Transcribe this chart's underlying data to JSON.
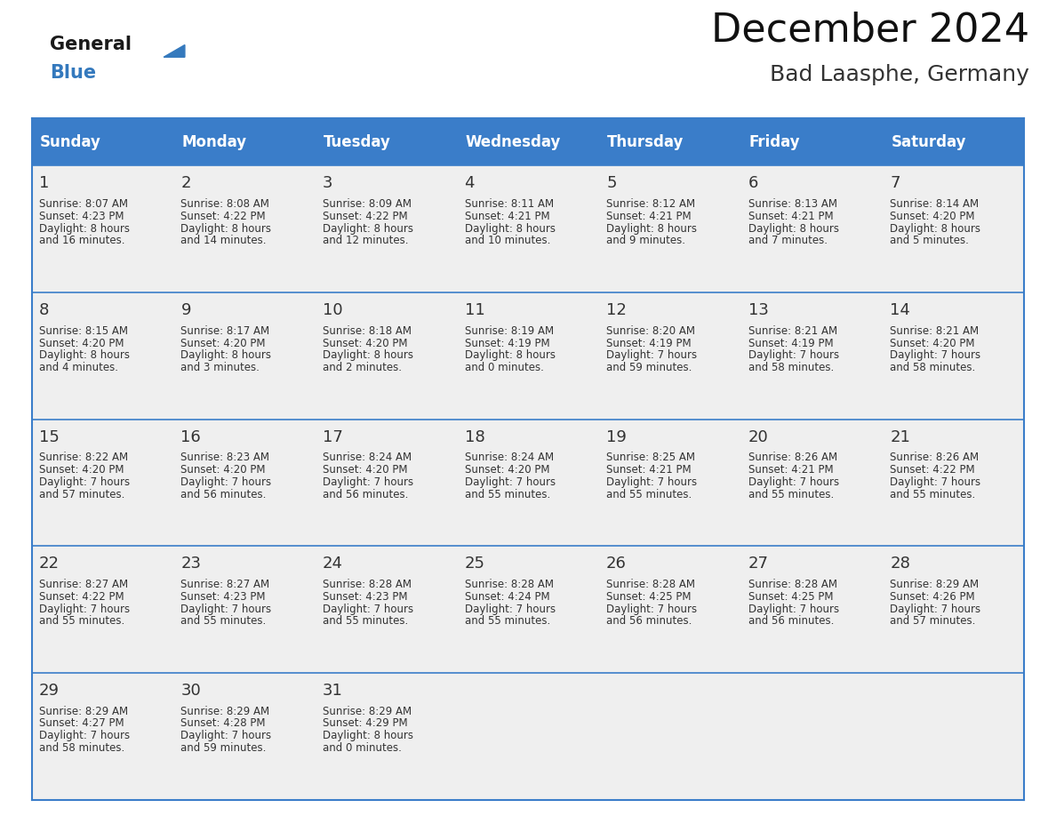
{
  "title": "December 2024",
  "subtitle": "Bad Laasphe, Germany",
  "header_color": "#3A7DC9",
  "header_text_color": "#FFFFFF",
  "row_bg_color": "#EFEFEF",
  "border_color": "#3A7DC9",
  "text_color": "#333333",
  "days_of_week": [
    "Sunday",
    "Monday",
    "Tuesday",
    "Wednesday",
    "Thursday",
    "Friday",
    "Saturday"
  ],
  "calendar_data": [
    [
      {
        "day": "1",
        "sunrise": "8:07 AM",
        "sunset": "4:23 PM",
        "daylight_h": "8 hours",
        "daylight_m": "and 16 minutes."
      },
      {
        "day": "2",
        "sunrise": "8:08 AM",
        "sunset": "4:22 PM",
        "daylight_h": "8 hours",
        "daylight_m": "and 14 minutes."
      },
      {
        "day": "3",
        "sunrise": "8:09 AM",
        "sunset": "4:22 PM",
        "daylight_h": "8 hours",
        "daylight_m": "and 12 minutes."
      },
      {
        "day": "4",
        "sunrise": "8:11 AM",
        "sunset": "4:21 PM",
        "daylight_h": "8 hours",
        "daylight_m": "and 10 minutes."
      },
      {
        "day": "5",
        "sunrise": "8:12 AM",
        "sunset": "4:21 PM",
        "daylight_h": "8 hours",
        "daylight_m": "and 9 minutes."
      },
      {
        "day": "6",
        "sunrise": "8:13 AM",
        "sunset": "4:21 PM",
        "daylight_h": "8 hours",
        "daylight_m": "and 7 minutes."
      },
      {
        "day": "7",
        "sunrise": "8:14 AM",
        "sunset": "4:20 PM",
        "daylight_h": "8 hours",
        "daylight_m": "and 5 minutes."
      }
    ],
    [
      {
        "day": "8",
        "sunrise": "8:15 AM",
        "sunset": "4:20 PM",
        "daylight_h": "8 hours",
        "daylight_m": "and 4 minutes."
      },
      {
        "day": "9",
        "sunrise": "8:17 AM",
        "sunset": "4:20 PM",
        "daylight_h": "8 hours",
        "daylight_m": "and 3 minutes."
      },
      {
        "day": "10",
        "sunrise": "8:18 AM",
        "sunset": "4:20 PM",
        "daylight_h": "8 hours",
        "daylight_m": "and 2 minutes."
      },
      {
        "day": "11",
        "sunrise": "8:19 AM",
        "sunset": "4:19 PM",
        "daylight_h": "8 hours",
        "daylight_m": "and 0 minutes."
      },
      {
        "day": "12",
        "sunrise": "8:20 AM",
        "sunset": "4:19 PM",
        "daylight_h": "7 hours",
        "daylight_m": "and 59 minutes."
      },
      {
        "day": "13",
        "sunrise": "8:21 AM",
        "sunset": "4:19 PM",
        "daylight_h": "7 hours",
        "daylight_m": "and 58 minutes."
      },
      {
        "day": "14",
        "sunrise": "8:21 AM",
        "sunset": "4:20 PM",
        "daylight_h": "7 hours",
        "daylight_m": "and 58 minutes."
      }
    ],
    [
      {
        "day": "15",
        "sunrise": "8:22 AM",
        "sunset": "4:20 PM",
        "daylight_h": "7 hours",
        "daylight_m": "and 57 minutes."
      },
      {
        "day": "16",
        "sunrise": "8:23 AM",
        "sunset": "4:20 PM",
        "daylight_h": "7 hours",
        "daylight_m": "and 56 minutes."
      },
      {
        "day": "17",
        "sunrise": "8:24 AM",
        "sunset": "4:20 PM",
        "daylight_h": "7 hours",
        "daylight_m": "and 56 minutes."
      },
      {
        "day": "18",
        "sunrise": "8:24 AM",
        "sunset": "4:20 PM",
        "daylight_h": "7 hours",
        "daylight_m": "and 55 minutes."
      },
      {
        "day": "19",
        "sunrise": "8:25 AM",
        "sunset": "4:21 PM",
        "daylight_h": "7 hours",
        "daylight_m": "and 55 minutes."
      },
      {
        "day": "20",
        "sunrise": "8:26 AM",
        "sunset": "4:21 PM",
        "daylight_h": "7 hours",
        "daylight_m": "and 55 minutes."
      },
      {
        "day": "21",
        "sunrise": "8:26 AM",
        "sunset": "4:22 PM",
        "daylight_h": "7 hours",
        "daylight_m": "and 55 minutes."
      }
    ],
    [
      {
        "day": "22",
        "sunrise": "8:27 AM",
        "sunset": "4:22 PM",
        "daylight_h": "7 hours",
        "daylight_m": "and 55 minutes."
      },
      {
        "day": "23",
        "sunrise": "8:27 AM",
        "sunset": "4:23 PM",
        "daylight_h": "7 hours",
        "daylight_m": "and 55 minutes."
      },
      {
        "day": "24",
        "sunrise": "8:28 AM",
        "sunset": "4:23 PM",
        "daylight_h": "7 hours",
        "daylight_m": "and 55 minutes."
      },
      {
        "day": "25",
        "sunrise": "8:28 AM",
        "sunset": "4:24 PM",
        "daylight_h": "7 hours",
        "daylight_m": "and 55 minutes."
      },
      {
        "day": "26",
        "sunrise": "8:28 AM",
        "sunset": "4:25 PM",
        "daylight_h": "7 hours",
        "daylight_m": "and 56 minutes."
      },
      {
        "day": "27",
        "sunrise": "8:28 AM",
        "sunset": "4:25 PM",
        "daylight_h": "7 hours",
        "daylight_m": "and 56 minutes."
      },
      {
        "day": "28",
        "sunrise": "8:29 AM",
        "sunset": "4:26 PM",
        "daylight_h": "7 hours",
        "daylight_m": "and 57 minutes."
      }
    ],
    [
      {
        "day": "29",
        "sunrise": "8:29 AM",
        "sunset": "4:27 PM",
        "daylight_h": "7 hours",
        "daylight_m": "and 58 minutes."
      },
      {
        "day": "30",
        "sunrise": "8:29 AM",
        "sunset": "4:28 PM",
        "daylight_h": "7 hours",
        "daylight_m": "and 59 minutes."
      },
      {
        "day": "31",
        "sunrise": "8:29 AM",
        "sunset": "4:29 PM",
        "daylight_h": "8 hours",
        "daylight_m": "and 0 minutes."
      },
      null,
      null,
      null,
      null
    ]
  ],
  "logo_color_general": "#1A1A1A",
  "logo_color_blue": "#3479BD"
}
